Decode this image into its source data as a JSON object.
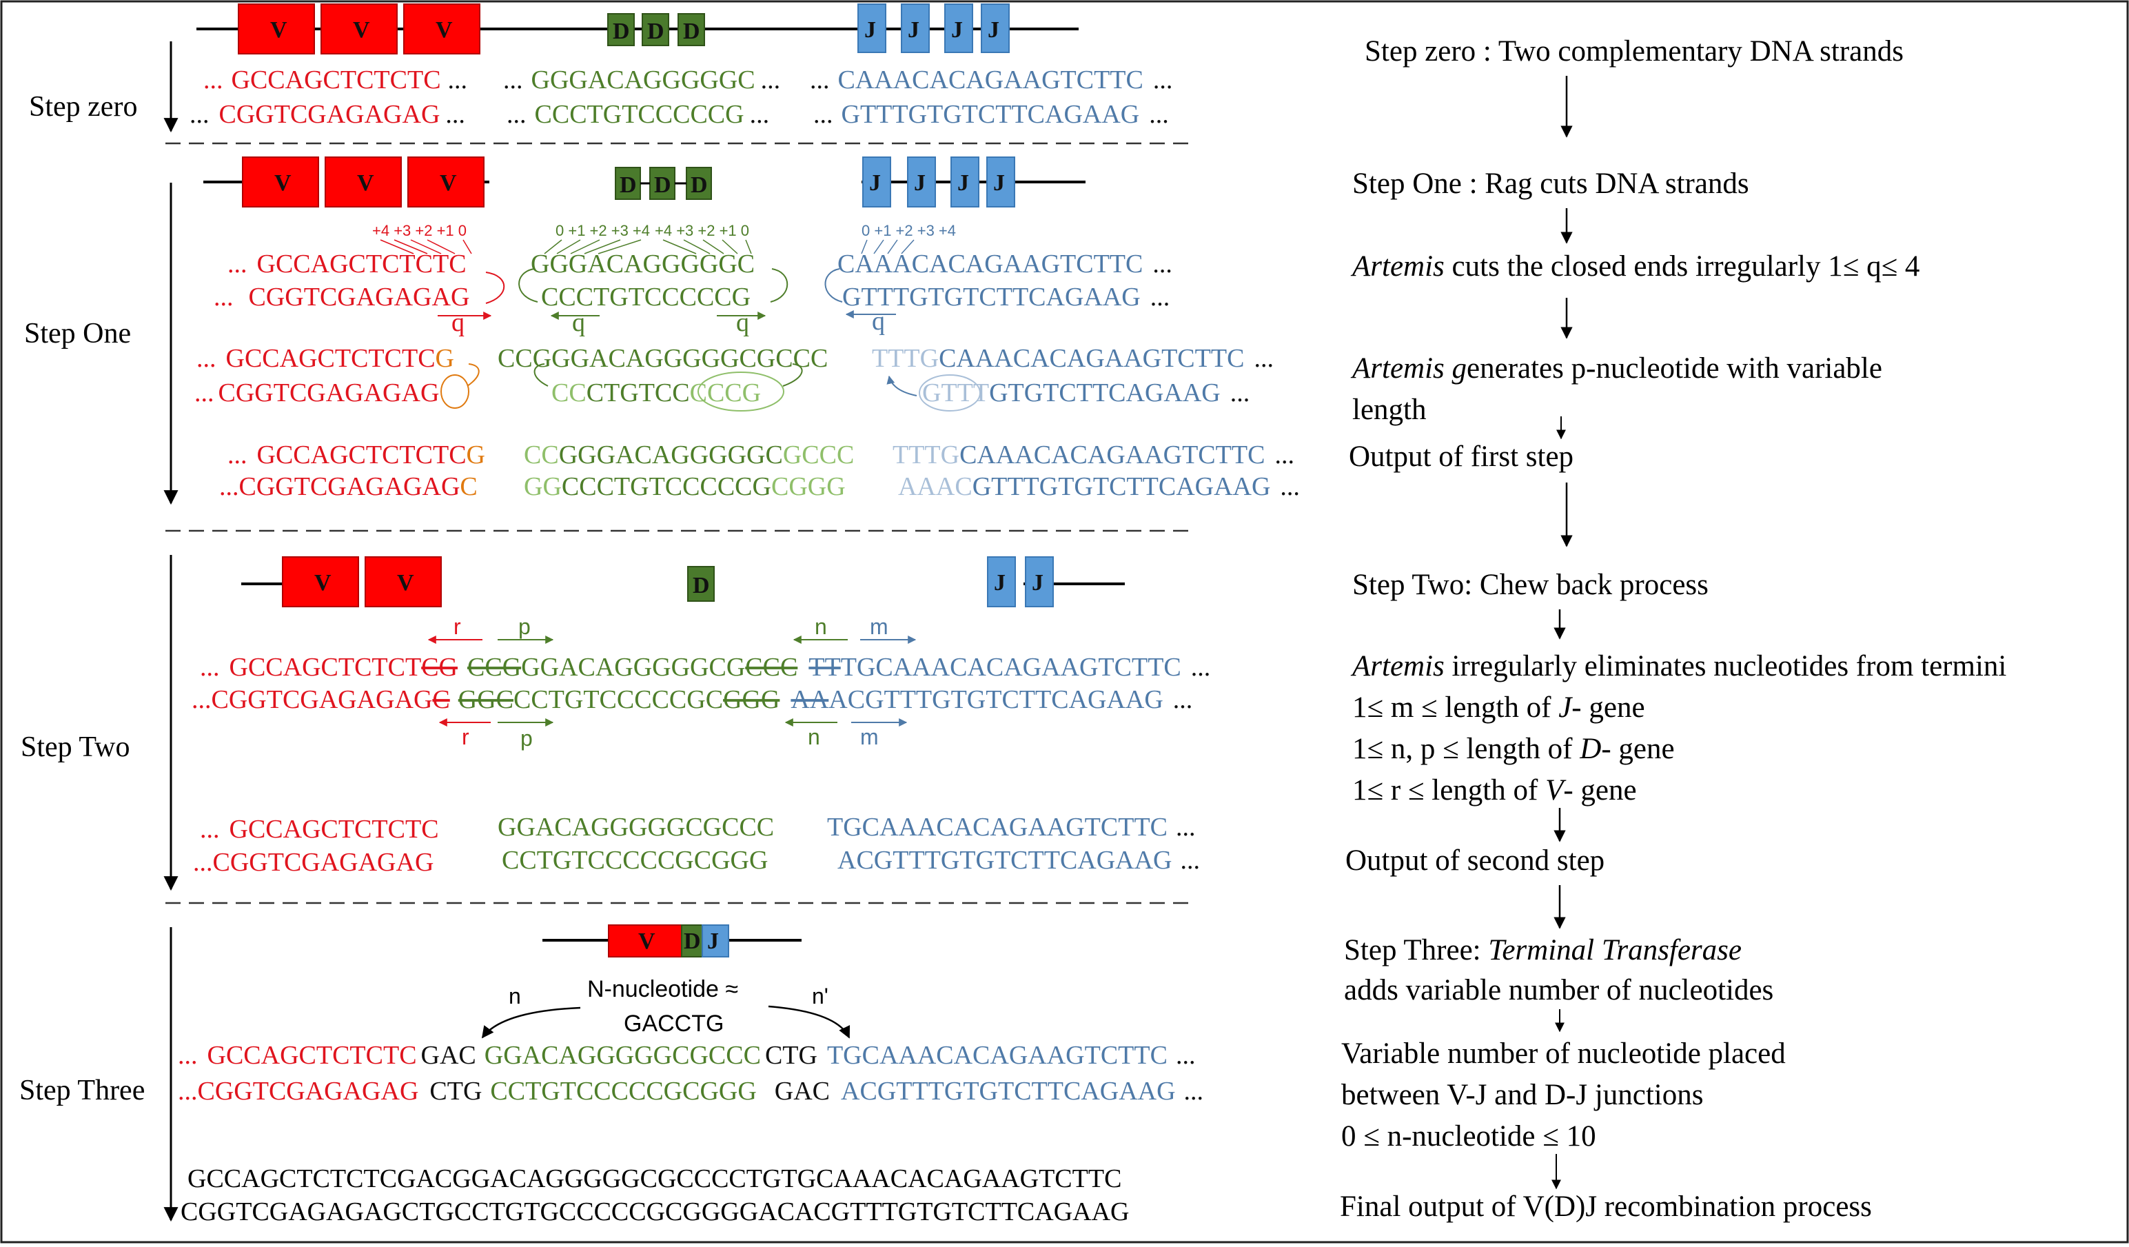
{
  "step_labels": {
    "zero": "Step zero",
    "one": "Step One",
    "two": "Step Two",
    "three": "Step Three"
  },
  "genes": {
    "v": "V",
    "d": "D",
    "j": "J"
  },
  "step_zero": {
    "v_top": "GCCAGCTCTCTC",
    "v_bot": "CGGTCGAGAGAG",
    "d_top": "GGGACAGGGGGC",
    "d_bot": "CCCTGTCCCCCG",
    "j_top": "CAAACACAGAAGTCTTC",
    "j_bot": "GTTTGTGTCTTCAGAAG"
  },
  "step_one": {
    "v_positions": "+4 +3 +2 +1 0",
    "d_positions_left": "0 +1 +2 +3 +4",
    "d_positions_right": "+4 +3 +2 +1 0",
    "j_positions": "0 +1 +2 +3 +4",
    "q": "q",
    "v_top": "GCCAGCTCTCTC",
    "v_bot": "CGGTCGAGAGAG",
    "d_top": "GGGACAGGGGGC",
    "d_bot": "CCCTGTCCCCCG",
    "j_top": "CAAACACAGAAGTCTTC",
    "j_bot": "GTTTGTGTCTTCAGAAG",
    "hp_v_top": "GCCAGCTCTCTCG",
    "hp_v_bot": "CGGTCGAGAGAG",
    "hp_d_top": "CCGGGACAGGGGGCGCCC",
    "hp_d_bot": "CCCTGTCCCCCG",
    "hp_j_top_p": "TTTG",
    "hp_j_top": "CAAACACAGAAGTCTTC",
    "hp_j_bot_p": "GTTT",
    "hp_j_bot": "GTGTCTTCAGAAG",
    "out_v_top": "GCCAGCTCTCTC",
    "out_v_top_p": "G",
    "out_v_bot": "CGGTCGAGAGAG",
    "out_v_bot_p": "C",
    "out_d_top_p1": "CC",
    "out_d_top": "GGGACAGGGGGC",
    "out_d_top_p2": "GCCC",
    "out_d_bot_p1": "GG",
    "out_d_bot": "CCCTGTCCCCCG",
    "out_d_bot_p2": "CGGG",
    "out_j_top_p": "TTTG",
    "out_j_top": "CAAACACAGAAGTCTTC",
    "out_j_bot_p": "AAAC",
    "out_j_bot": "GTTTGTGTCTTCAGAAG"
  },
  "step_two": {
    "r": "r",
    "p": "p",
    "n": "n",
    "m": "m",
    "v_top": "GCCAGCTCTCT",
    "v_top_x": "CG",
    "d_top_x1": "CCG",
    "d_top": "GGACAGGGGGCG",
    "d_top_x2": "CCC",
    "j_top_x": "TT",
    "j_top": "TGCAAACACAGAAGTCTTC",
    "v_bot": "CGGTCGAGAGAG",
    "v_bot_x": "C",
    "d_bot_x1": "GGC",
    "d_bot": "CCTGTCCCCCGC",
    "d_bot_x2": "GGG",
    "j_bot_x": "AA",
    "j_bot": "ACGTTTGTGTCTTCAGAAG",
    "out_v_top": "GCCAGCTCTCTC",
    "out_v_bot": "CGGTCGAGAGAG",
    "out_d_top": "GGACAGGGGGCGCCC",
    "out_d_bot": "CCTGTCCCCCGCGGG",
    "out_j_top": "TGCAAACACAGAAGTCTTC",
    "out_j_bot": "ACGTTTGTGTCTTCAGAAG"
  },
  "step_three": {
    "n": "n",
    "n_prime": "n'",
    "n_nucleotide_line1": "N-nucleotide ≈",
    "n_nucleotide_line2": "GACCTG",
    "v_top": "GCCAGCTCTCTC",
    "ins1_top": "GAC",
    "d_top": "GGACAGGGGGCGCCC",
    "ins2_top": "CTG",
    "j_top": "TGCAAACACAGAAGTCTTC",
    "v_bot": "CGGTCGAGAGAG",
    "ins1_bot": "CTG",
    "d_bot": "CCTGTCCCCCGCGGG",
    "ins2_bot": "GAC",
    "j_bot": "ACGTTTGTGTCTTCAGAAG",
    "final_top": "GCCAGCTCTCTCGACGGACAGGGGGCGCCCCTGTGCAAACACAGAAGTCTTC",
    "final_bot": "CGGTCGAGAGAGCTGCCTGTGCCCCCGCGGGGACACGTTTGTGTCTTCAGAAG"
  },
  "flow": {
    "s0": "Step zero : Two complementary DNA strands",
    "s1": "Step One : Rag cuts DNA strands",
    "s2_it": "Artemis",
    "s2": " cuts the closed ends irregularly 1≤ q≤ 4",
    "s3_it": "Artemis g",
    "s3": "enerates p-nucleotide with variable",
    "s3b": "length",
    "s4": "Output of first step",
    "s5": "Step Two: Chew back process",
    "s6_it": "Artemis",
    "s6": " irregularly eliminates nucleotides from termini",
    "s7a": "1≤ m ≤ length of ",
    "s7_it": "J",
    "s7b": "- gene",
    "s8a": "1≤ n, p ≤ length of ",
    "s8_it": "D",
    "s8b": "- gene",
    "s9a": "1≤ r ≤ length of ",
    "s9_it": "V",
    "s9b": "- gene",
    "s10": "Output of second step",
    "s11a": "Step Three: ",
    "s11_it": "Terminal Transferase",
    "s11b": "adds variable number of nucleotides",
    "s12a": "Variable number of nucleotide placed",
    "s12b": "between  V-J and D-J junctions",
    "s12c": "0 ≤ n-nucleotide ≤ 10",
    "s13": "Final output of V(D)J recombination process"
  },
  "ellipsis": "...",
  "colors": {
    "v": "#e0141e",
    "d": "#4e7e2a",
    "j": "#4f7aa8"
  }
}
